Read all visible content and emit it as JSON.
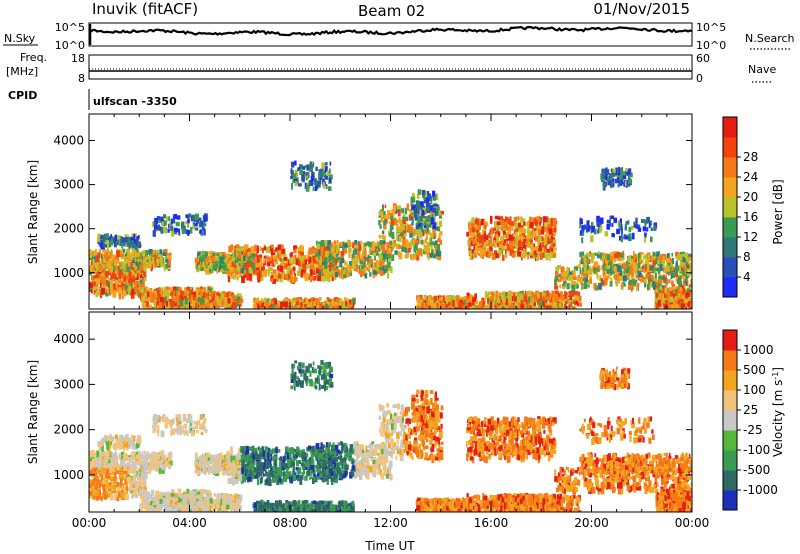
{
  "header": {
    "title": "Inuvik (fitACF)",
    "beam": "Beam 02",
    "date": "01/Nov/2015"
  },
  "top_panels": {
    "nsky_label": "N.Sky",
    "nsky_ticks": [
      "10^5",
      "10^0"
    ],
    "nsearch_label": "N.Search",
    "nsearch_ticks": [
      "10^5",
      "10^0"
    ],
    "freq_label_1": "Freq.",
    "freq_label_2": "[MHz]",
    "freq_ticks": [
      "18",
      "8"
    ],
    "nave_label": "Nave",
    "nave_ticks": [
      "60",
      "0"
    ],
    "cpid_label": "CPID",
    "cpid_value": "ulfscan -3350"
  },
  "chart_data": [
    {
      "type": "heatmap",
      "name": "power",
      "ylabel": "Slant Range [km]",
      "yticks": [
        "1000",
        "2000",
        "3000",
        "4000"
      ],
      "ylim": [
        180,
        4600
      ],
      "xlim": [
        0,
        24
      ],
      "colorbar": {
        "label": "Power [dB]",
        "ticks": [
          "4",
          "8",
          "12",
          "16",
          "20",
          "24",
          "28"
        ],
        "colors": [
          "#1d2bf4",
          "#2a4fb8",
          "#2f7a78",
          "#3c9b53",
          "#b8c22a",
          "#f2a51f",
          "#f57a17",
          "#f1420f",
          "#e41e14"
        ]
      }
    },
    {
      "type": "heatmap",
      "name": "velocity",
      "ylabel": "Slant Range [km]",
      "yticks": [
        "1000",
        "2000",
        "3000",
        "4000"
      ],
      "ylim": [
        180,
        4600
      ],
      "xlim": [
        0,
        24
      ],
      "xlabel": "Time UT",
      "xticks": [
        "00:00",
        "04:00",
        "08:00",
        "12:00",
        "16:00",
        "20:00",
        "00:00"
      ],
      "colorbar": {
        "label": "Velocity [m s^-1]",
        "ticks": [
          "1000",
          "500",
          "100",
          "25",
          "-25",
          "-100",
          "-500",
          "-1000"
        ],
        "colors": [
          "#1d2fb8",
          "#2e6a63",
          "#3c9b53",
          "#55b83a",
          "#c8c8c8",
          "#f2c37a",
          "#f2a51f",
          "#f57a17",
          "#e41e14"
        ]
      }
    }
  ]
}
